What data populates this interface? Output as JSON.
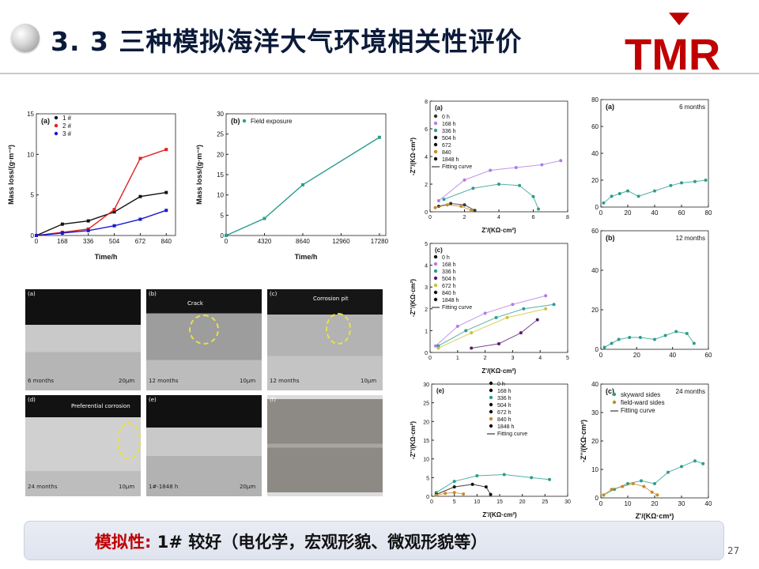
{
  "header": {
    "title": "3. 3 三种模拟海洋大气环境相关性评价",
    "logo_text": "TMR"
  },
  "footer": {
    "conclusion_lead": "模拟性:",
    "conclusion_rest": " 1# 较好（电化学，宏观形貌、微观形貌等）",
    "page_number": "27"
  },
  "colors": {
    "title": "#0c1a3a",
    "accent_red": "#c00000",
    "teal": "#2a9d8f",
    "purple": "#b07be8",
    "orange": "#c98a28",
    "olive": "#c9c23a"
  },
  "chart_data": [
    {
      "id": "a",
      "type": "line",
      "panel_label": "(a)",
      "xlabel": "Time/h",
      "ylabel": "Mass loss/(g·m⁻²)",
      "xlim": [
        0,
        900
      ],
      "ylim": [
        0,
        15
      ],
      "x_ticks": [
        "0",
        "168",
        "336",
        "504",
        "672",
        "840"
      ],
      "y_ticks": [
        "0",
        "5",
        "10",
        "15"
      ],
      "legend": [
        "1 #",
        "2 #",
        "3 #"
      ],
      "series": [
        {
          "name": "1 #",
          "color": "#111111",
          "x": [
            0,
            168,
            336,
            504,
            672,
            840
          ],
          "y": [
            0,
            1.4,
            1.8,
            2.9,
            4.8,
            5.3
          ]
        },
        {
          "name": "2 #",
          "color": "#e02020",
          "x": [
            0,
            168,
            336,
            504,
            672,
            840
          ],
          "y": [
            0,
            0.4,
            0.8,
            3.2,
            9.5,
            10.6
          ]
        },
        {
          "name": "3 #",
          "color": "#1a1ad0",
          "x": [
            0,
            168,
            336,
            504,
            672,
            840
          ],
          "y": [
            0,
            0.3,
            0.6,
            1.2,
            2.0,
            3.1
          ]
        }
      ]
    },
    {
      "id": "b",
      "type": "line",
      "panel_label": "(b)",
      "xlabel": "Time/h",
      "ylabel": "Mass loss/(g·m⁻²)",
      "xlim": [
        0,
        18000
      ],
      "ylim": [
        0,
        30
      ],
      "x_ticks": [
        "0",
        "4320",
        "8640",
        "12960",
        "17280"
      ],
      "y_ticks": [
        "0",
        "5",
        "10",
        "15",
        "20",
        "25",
        "30"
      ],
      "legend": [
        "Field exposure"
      ],
      "series": [
        {
          "name": "Field exposure",
          "color": "#2a9d8f",
          "x": [
            0,
            4320,
            8640,
            17280
          ],
          "y": [
            0,
            4.2,
            12.5,
            24.2
          ]
        }
      ]
    },
    {
      "id": "c1",
      "type": "scatter",
      "panel_label": "(a)",
      "xlabel": "Z'/(KΩ·cm²)",
      "ylabel": "-Z''/(KΩ·cm²)",
      "xlim": [
        0,
        8
      ],
      "ylim": [
        0,
        8
      ],
      "x_ticks": [
        "0",
        "2",
        "4",
        "6",
        "8"
      ],
      "y_ticks": [
        "0",
        "2",
        "4",
        "6",
        "8"
      ],
      "legend": [
        "0 h",
        "168 h",
        "336 h",
        "504 h",
        "672",
        "840",
        "1848 h",
        "Fitting curve"
      ],
      "series": [
        {
          "name": "168 h",
          "color": "#b07be8",
          "x": [
            0.5,
            2,
            3.5,
            5,
            6.5,
            7.6
          ],
          "y": [
            0.8,
            2.3,
            3.0,
            3.2,
            3.4,
            3.7
          ]
        },
        {
          "name": "336 h",
          "color": "#2a9d8f",
          "x": [
            0.8,
            2.5,
            4,
            5.2,
            6,
            6.3
          ],
          "y": [
            0.9,
            1.7,
            2.0,
            1.9,
            1.1,
            0.2
          ]
        },
        {
          "name": "0 h",
          "color": "#333333",
          "x": [
            0.5,
            1.2,
            2,
            2.6
          ],
          "y": [
            0.4,
            0.6,
            0.5,
            0.1
          ]
        },
        {
          "name": "840",
          "color": "#c98a28",
          "x": [
            0.3,
            1,
            1.8,
            2.4
          ],
          "y": [
            0.3,
            0.5,
            0.4,
            0.1
          ]
        }
      ]
    },
    {
      "id": "c2",
      "type": "scatter",
      "panel_label": "(c)",
      "xlabel": "Z'/(KΩ·cm²)",
      "ylabel": "-Z''/(KΩ·cm²)",
      "xlim": [
        0,
        5
      ],
      "ylim": [
        0,
        5
      ],
      "x_ticks": [
        "0",
        "1",
        "2",
        "3",
        "4",
        "5"
      ],
      "y_ticks": [
        "0",
        "1",
        "2",
        "3",
        "4",
        "5"
      ],
      "legend": [
        "0 h",
        "168 h",
        "336 h",
        "504 h",
        "672 h",
        "840 h",
        "1848 h",
        "Fitting curve"
      ],
      "series": [
        {
          "name": "168 h",
          "color": "#b07be8",
          "x": [
            0.2,
            1,
            2,
            3,
            4.2
          ],
          "y": [
            0.3,
            1.2,
            1.8,
            2.2,
            2.6
          ]
        },
        {
          "name": "336 h",
          "color": "#2a9d8f",
          "x": [
            0.3,
            1.3,
            2.4,
            3.4,
            4.5
          ],
          "y": [
            0.3,
            1.0,
            1.6,
            2.0,
            2.2
          ]
        },
        {
          "name": "672 h",
          "color": "#c9c23a",
          "x": [
            0.3,
            1.5,
            2.8,
            4.2
          ],
          "y": [
            0.2,
            0.9,
            1.6,
            2.0
          ]
        },
        {
          "name": "504 h",
          "color": "#5a1a6a",
          "x": [
            1.5,
            2.5,
            3.3,
            3.9
          ],
          "y": [
            0.2,
            0.4,
            0.9,
            1.5
          ]
        }
      ]
    },
    {
      "id": "c3",
      "type": "scatter",
      "panel_label": "(e)",
      "xlabel": "Z'/(KΩ·cm²)",
      "ylabel": "-Z''/(KΩ·cm²)",
      "xlim": [
        0,
        30
      ],
      "ylim": [
        0,
        30
      ],
      "x_ticks": [
        "0",
        "5",
        "10",
        "15",
        "20",
        "25",
        "30"
      ],
      "y_ticks": [
        "0",
        "5",
        "10",
        "15",
        "20",
        "25",
        "30"
      ],
      "legend": [
        "0 h",
        "168 h",
        "336 h",
        "504 h",
        "672 h",
        "840 h",
        "1848 h",
        "Fitting curve"
      ],
      "series": [
        {
          "name": "336 h",
          "color": "#2a9d8f",
          "x": [
            1,
            5,
            10,
            16,
            22,
            26
          ],
          "y": [
            1,
            4,
            5.5,
            5.8,
            5,
            4.5
          ]
        },
        {
          "name": "0 h",
          "color": "#111111",
          "x": [
            1,
            5,
            9,
            12,
            13
          ],
          "y": [
            0.5,
            2.5,
            3.2,
            2.5,
            0.5
          ]
        },
        {
          "name": "840 h",
          "color": "#c98a28",
          "x": [
            1,
            3,
            5,
            7
          ],
          "y": [
            0.3,
            0.8,
            1.0,
            0.6
          ]
        }
      ]
    },
    {
      "id": "d1",
      "type": "scatter",
      "panel_label": "(a)",
      "annotation": "6 months",
      "xlim": [
        0,
        80
      ],
      "ylim": [
        0,
        80
      ],
      "x_ticks": [
        "0",
        "20",
        "40",
        "60",
        "80"
      ],
      "y_ticks": [
        "0",
        "20",
        "40",
        "60",
        "80"
      ],
      "series": [
        {
          "name": "",
          "color": "#2a9d8f",
          "x": [
            2,
            8,
            14,
            20,
            28,
            40,
            52,
            60,
            70,
            78
          ],
          "y": [
            3,
            8,
            10,
            12,
            8,
            12,
            16,
            18,
            19,
            20
          ]
        }
      ]
    },
    {
      "id": "d2",
      "type": "scatter",
      "panel_label": "(b)",
      "annotation": "12 months",
      "xlim": [
        0,
        60
      ],
      "ylim": [
        0,
        60
      ],
      "x_ticks": [
        "0",
        "20",
        "40",
        "60"
      ],
      "y_ticks": [
        "0",
        "20",
        "40",
        "60"
      ],
      "series": [
        {
          "name": "",
          "color": "#2a9d8f",
          "x": [
            2,
            6,
            10,
            16,
            22,
            30,
            36,
            42,
            48,
            52
          ],
          "y": [
            1,
            3,
            5,
            6,
            6,
            5,
            7,
            9,
            8,
            3
          ]
        }
      ]
    },
    {
      "id": "d3",
      "type": "scatter",
      "panel_label": "(c)",
      "annotation": "24 months",
      "xlabel": "Z'/(KΩ·cm²)",
      "ylabel": "-Z''/(KΩ·cm²)",
      "xlim": [
        0,
        40
      ],
      "ylim": [
        0,
        40
      ],
      "x_ticks": [
        "0",
        "10",
        "20",
        "30",
        "40"
      ],
      "y_ticks": [
        "0",
        "10",
        "20",
        "30",
        "40"
      ],
      "legend": [
        "skyward sides",
        "field-ward sides",
        "Fitting curve"
      ],
      "series": [
        {
          "name": "skyward sides",
          "color": "#2a9d8f",
          "x": [
            1,
            5,
            10,
            15,
            20,
            25,
            30,
            35,
            38
          ],
          "y": [
            1,
            3,
            5,
            6,
            5,
            9,
            11,
            13,
            12
          ]
        },
        {
          "name": "field-ward sides",
          "color": "#c98a28",
          "x": [
            1,
            4,
            8,
            12,
            16,
            19,
            21
          ],
          "y": [
            1,
            3,
            4,
            5,
            4,
            2,
            1
          ]
        }
      ]
    }
  ],
  "micrographs": [
    {
      "label": "(a)",
      "caption": "6 months",
      "scale": "20μm"
    },
    {
      "label": "(b)",
      "caption": "12 months",
      "scale": "10μm",
      "note": "Crack"
    },
    {
      "label": "(c)",
      "caption": "12 months",
      "scale": "10μm",
      "note": "Corrosion pit"
    },
    {
      "label": "(d)",
      "caption": "24 months",
      "scale": "10μm",
      "note": "Preferential corrosion"
    },
    {
      "label": "(e)",
      "caption": "1#-1848 h",
      "scale": "20μm"
    },
    {
      "label": "(f)",
      "caption": "",
      "scale": ""
    }
  ]
}
